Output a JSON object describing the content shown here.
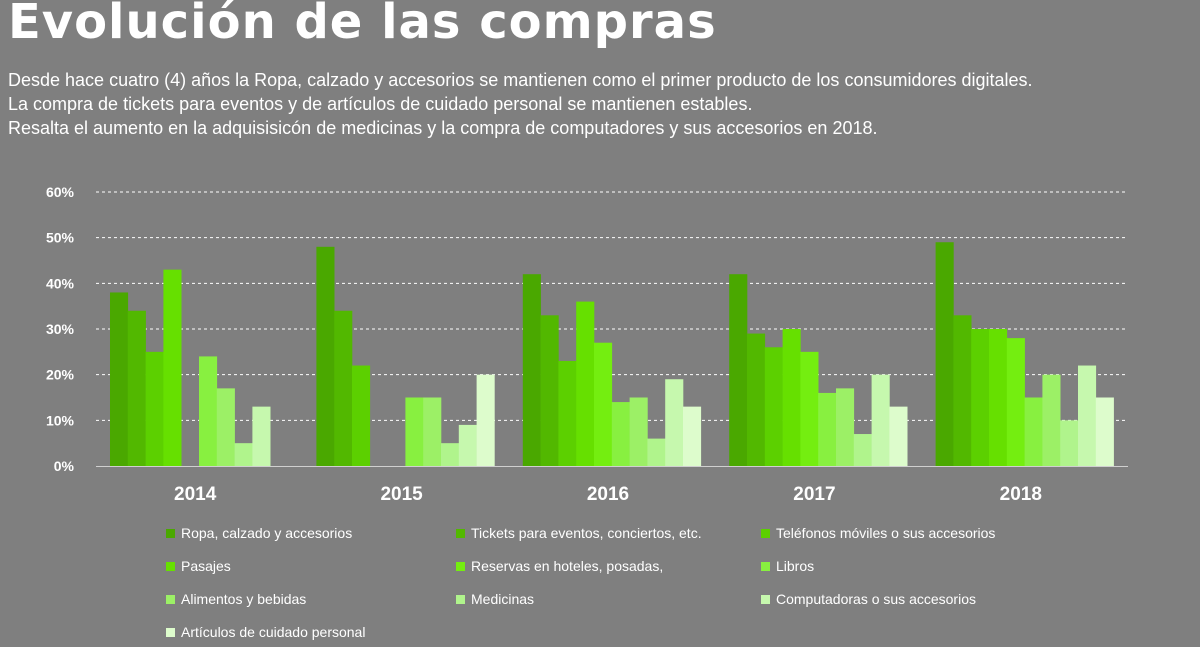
{
  "header": {
    "title": "Evolución de las compras",
    "lines": [
      "Desde hace cuatro (4) años la Ropa, calzado y accesorios se mantienen como el primer producto de los consumidores digitales.",
      "La compra de tickets para eventos y de artículos de cuidado personal se mantienen estables.",
      "Resalta el aumento en la  adquisisicón de medicinas y la compra de computadores y sus accesorios en 2018."
    ]
  },
  "chart_data": {
    "type": "bar",
    "categories": [
      "2014",
      "2015",
      "2016",
      "2017",
      "2018"
    ],
    "ylim": [
      0,
      60
    ],
    "yticks": [
      "0%",
      "10%",
      "20%",
      "30%",
      "40%",
      "50%",
      "60%"
    ],
    "grid": true,
    "legend_position": "bottom",
    "series": [
      {
        "name": "Ropa, calzado y accesorios",
        "color": "#4aa800",
        "values": [
          38,
          48,
          42,
          42,
          49
        ]
      },
      {
        "name": "Tickets para eventos, conciertos, etc.",
        "color": "#52b800",
        "values": [
          34,
          34,
          33,
          29,
          33
        ]
      },
      {
        "name": "Teléfonos móviles o sus accesorios",
        "color": "#5cd000",
        "values": [
          25,
          22,
          23,
          26,
          30
        ]
      },
      {
        "name": "Pasajes",
        "color": "#66e000",
        "values": [
          43,
          null,
          36,
          30,
          30
        ]
      },
      {
        "name": "Reservas en hoteles, posadas,",
        "color": "#74ee10",
        "values": [
          null,
          null,
          27,
          25,
          28
        ]
      },
      {
        "name": "Libros",
        "color": "#88f040",
        "values": [
          24,
          15,
          14,
          16,
          15
        ]
      },
      {
        "name": "Alimentos y bebidas",
        "color": "#9cf066",
        "values": [
          17,
          15,
          15,
          17,
          20
        ]
      },
      {
        "name": "Medicinas",
        "color": "#b0f48c",
        "values": [
          5,
          5,
          6,
          7,
          10
        ]
      },
      {
        "name": "Computadoras o sus accesorios",
        "color": "#c6f8ae",
        "values": [
          13,
          9,
          19,
          20,
          22
        ]
      },
      {
        "name": "Artículos de cuidado personal",
        "color": "#ddfccc",
        "values": [
          null,
          20,
          13,
          13,
          15
        ]
      }
    ]
  }
}
